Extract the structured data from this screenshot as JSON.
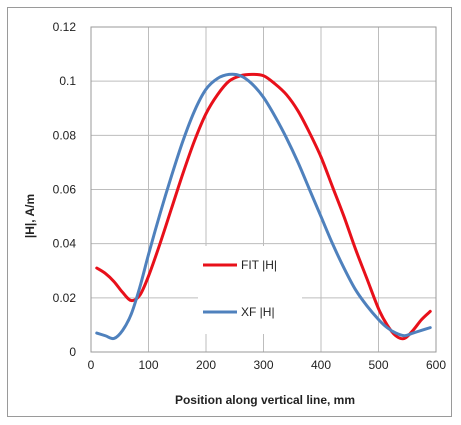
{
  "chart_data": {
    "type": "line",
    "title": "",
    "xlabel": "Position along vertical line, mm",
    "ylabel": "|H|, A/m",
    "xlim": [
      0,
      600
    ],
    "ylim": [
      0,
      0.12
    ],
    "x_ticks": [
      0,
      100,
      200,
      300,
      400,
      500,
      600
    ],
    "y_ticks": [
      0,
      0.02,
      0.04,
      0.06,
      0.08,
      0.1,
      0.12
    ],
    "x_tick_labels": [
      "0",
      "100",
      "200",
      "300",
      "400",
      "500",
      "600"
    ],
    "y_tick_labels": [
      "0",
      "0.02",
      "0.04",
      "0.06",
      "0.08",
      "0.1",
      "0.12"
    ],
    "grid": true,
    "legend_position": "inside-center-left",
    "series": [
      {
        "name": "FIT |H|",
        "color": "#e8101a",
        "x": [
          10,
          25,
          40,
          55,
          70,
          85,
          100,
          120,
          140,
          160,
          180,
          200,
          220,
          240,
          260,
          280,
          300,
          320,
          340,
          360,
          380,
          400,
          420,
          440,
          460,
          480,
          500,
          515,
          530,
          545,
          560,
          575,
          590
        ],
        "y": [
          0.031,
          0.029,
          0.026,
          0.022,
          0.019,
          0.021,
          0.028,
          0.04,
          0.053,
          0.066,
          0.078,
          0.088,
          0.095,
          0.1,
          0.102,
          0.1025,
          0.102,
          0.099,
          0.095,
          0.089,
          0.081,
          0.072,
          0.061,
          0.05,
          0.038,
          0.027,
          0.016,
          0.01,
          0.006,
          0.005,
          0.008,
          0.012,
          0.015
        ]
      },
      {
        "name": "XF |H|",
        "color": "#4f81bd",
        "x": [
          10,
          25,
          40,
          55,
          70,
          85,
          100,
          120,
          140,
          160,
          180,
          200,
          220,
          240,
          260,
          280,
          300,
          320,
          340,
          360,
          380,
          400,
          420,
          440,
          460,
          480,
          500,
          515,
          530,
          545,
          560,
          575,
          590
        ],
        "y": [
          0.007,
          0.006,
          0.005,
          0.008,
          0.014,
          0.024,
          0.036,
          0.051,
          0.065,
          0.078,
          0.089,
          0.097,
          0.101,
          0.1025,
          0.102,
          0.099,
          0.094,
          0.087,
          0.079,
          0.07,
          0.06,
          0.05,
          0.04,
          0.031,
          0.023,
          0.017,
          0.012,
          0.009,
          0.007,
          0.006,
          0.007,
          0.008,
          0.009
        ]
      }
    ]
  }
}
